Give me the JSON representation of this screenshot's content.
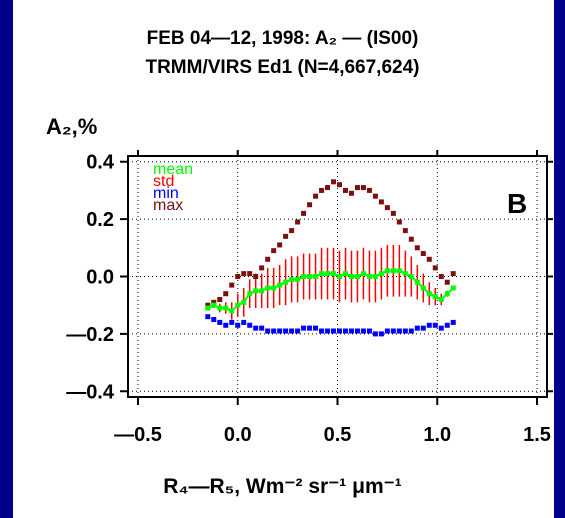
{
  "chart_data": {
    "type": "scatter",
    "title_line1": "FEB 04—12, 1998: A₂ — (IS00)",
    "title_line2": "TRMM/VIRS  Ed1 (N=4,667,624)",
    "ylabel": "A₂,%",
    "xlabel": "R₄—R₅,  Wm⁻² sr⁻¹ μm⁻¹",
    "panel_label": "B",
    "xlim": [
      -0.55,
      1.55
    ],
    "ylim": [
      -0.42,
      0.42
    ],
    "xticks": [
      -0.5,
      0.0,
      0.5,
      1.0,
      1.5
    ],
    "xtick_labels": [
      "—0.5",
      "0.0",
      "0.5",
      "1.0",
      "1.5"
    ],
    "yticks": [
      0.4,
      0.2,
      0.0,
      -0.2,
      -0.4
    ],
    "ytick_labels": [
      "0.4",
      "0.2",
      "0.0",
      "—0.2",
      "—0.4"
    ],
    "grid": "dotted",
    "legend_position": "top-left",
    "x": [
      -0.15,
      -0.12,
      -0.09,
      -0.06,
      -0.03,
      0.0,
      0.03,
      0.06,
      0.09,
      0.12,
      0.15,
      0.18,
      0.21,
      0.24,
      0.27,
      0.3,
      0.33,
      0.36,
      0.39,
      0.42,
      0.45,
      0.48,
      0.51,
      0.54,
      0.57,
      0.6,
      0.63,
      0.66,
      0.69,
      0.72,
      0.75,
      0.78,
      0.81,
      0.84,
      0.87,
      0.9,
      0.93,
      0.96,
      0.99,
      1.02,
      1.05,
      1.08
    ],
    "series": [
      {
        "name": "mean",
        "color": "#00ff00",
        "values": [
          -0.11,
          -0.1,
          -0.11,
          -0.11,
          -0.12,
          -0.1,
          -0.09,
          -0.06,
          -0.05,
          -0.05,
          -0.04,
          -0.04,
          -0.03,
          -0.02,
          -0.01,
          -0.01,
          0.0,
          0.0,
          0.0,
          0.01,
          0.01,
          0.01,
          0.0,
          0.01,
          0.0,
          0.0,
          0.01,
          0.0,
          0.0,
          0.01,
          0.02,
          0.02,
          0.02,
          0.01,
          0.0,
          -0.02,
          -0.04,
          -0.06,
          -0.07,
          -0.08,
          -0.06,
          -0.04
        ]
      },
      {
        "name": "std",
        "color": "#ff0000",
        "values": [
          0.005,
          0.01,
          0.015,
          0.02,
          0.03,
          0.04,
          0.05,
          0.05,
          0.06,
          0.06,
          0.07,
          0.07,
          0.07,
          0.08,
          0.08,
          0.08,
          0.08,
          0.08,
          0.08,
          0.09,
          0.09,
          0.09,
          0.09,
          0.09,
          0.09,
          0.09,
          0.09,
          0.09,
          0.09,
          0.09,
          0.09,
          0.09,
          0.09,
          0.08,
          0.07,
          0.06,
          0.05,
          0.04,
          0.03,
          0.02,
          0.01,
          0.005
        ]
      },
      {
        "name": "min",
        "color": "#0000ff",
        "values": [
          -0.14,
          -0.15,
          -0.16,
          -0.17,
          -0.16,
          -0.17,
          -0.16,
          -0.17,
          -0.18,
          -0.18,
          -0.19,
          -0.19,
          -0.19,
          -0.19,
          -0.19,
          -0.19,
          -0.18,
          -0.18,
          -0.18,
          -0.19,
          -0.19,
          -0.19,
          -0.19,
          -0.19,
          -0.19,
          -0.19,
          -0.19,
          -0.19,
          -0.2,
          -0.2,
          -0.19,
          -0.19,
          -0.19,
          -0.19,
          -0.19,
          -0.18,
          -0.18,
          -0.17,
          -0.17,
          -0.18,
          -0.17,
          -0.16
        ]
      },
      {
        "name": "max",
        "color": "#7a1010",
        "values": [
          -0.1,
          -0.09,
          -0.08,
          -0.06,
          -0.03,
          0.0,
          0.01,
          0.01,
          0.0,
          0.03,
          0.06,
          0.09,
          0.11,
          0.14,
          0.16,
          0.19,
          0.22,
          0.25,
          0.28,
          0.3,
          0.31,
          0.33,
          0.32,
          0.3,
          0.29,
          0.31,
          0.31,
          0.3,
          0.28,
          0.26,
          0.24,
          0.22,
          0.19,
          0.16,
          0.13,
          0.1,
          0.08,
          0.06,
          0.03,
          0.0,
          -0.02,
          0.01
        ]
      }
    ]
  }
}
